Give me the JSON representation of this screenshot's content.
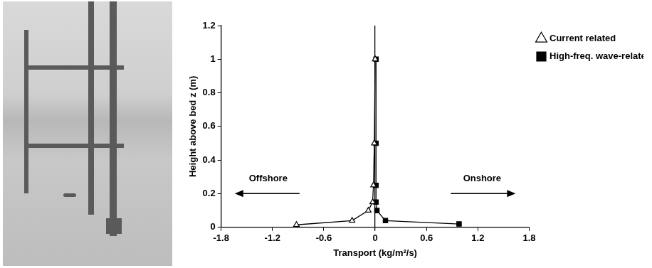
{
  "chart_data": {
    "type": "line",
    "x_label": "Transport (kg/m²/s)",
    "y_label": "Height above bed z (m)",
    "xlim": [
      -1.8,
      1.8
    ],
    "xticks": [
      -1.8,
      -1.2,
      -0.6,
      0,
      0.6,
      1.2,
      1.8
    ],
    "ylim": [
      0,
      1.2
    ],
    "yticks": [
      0,
      0.2,
      0.4,
      0.6,
      0.8,
      1,
      1.2
    ],
    "grid": false,
    "legend": "right",
    "series": [
      {
        "name": "Current related",
        "color": "#000000",
        "marker": "triangle-open",
        "line_style": "solid",
        "x": [
          -0.92,
          -0.27,
          -0.08,
          -0.03,
          -0.02,
          -0.01,
          0.0
        ],
        "values": [
          0.015,
          0.04,
          0.1,
          0.15,
          0.25,
          0.5,
          1.0
        ]
      },
      {
        "name": "High-freq. wave-related",
        "color": "#000000",
        "marker": "square",
        "line_style": "solid",
        "x": [
          0.98,
          0.12,
          0.02,
          0.01,
          0.01,
          0.01,
          0.01
        ],
        "values": [
          0.02,
          0.04,
          0.1,
          0.15,
          0.25,
          0.5,
          1.0
        ]
      }
    ],
    "annotations": [
      {
        "text": "Offshore",
        "x": -1.25,
        "y": 0.26
      },
      {
        "text": "Onshore",
        "x": 1.25,
        "y": 0.26
      }
    ]
  }
}
